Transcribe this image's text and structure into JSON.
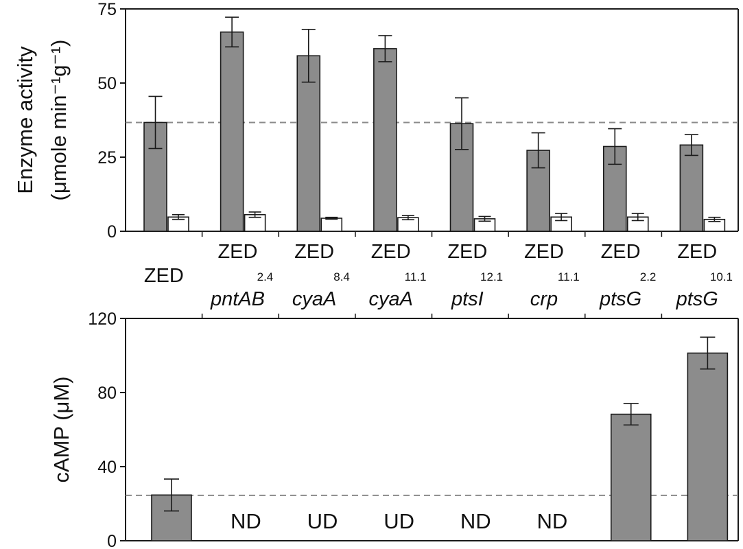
{
  "colors": {
    "gray_bar": "#8c8c8c",
    "white_bar": "#ffffff",
    "axis": "#1a1a1a",
    "reference_line": "#8a8a8a"
  },
  "categories": [
    {
      "line1": "ZED",
      "sup": "",
      "line2": ""
    },
    {
      "line1": "ZED",
      "sup": "2.4",
      "line2": "pntAB"
    },
    {
      "line1": "ZED",
      "sup": "8.4",
      "line2": "cyaA"
    },
    {
      "line1": "ZED",
      "sup": "11.1",
      "line2": "cyaA"
    },
    {
      "line1": "ZED",
      "sup": "12.1",
      "line2": "ptsI"
    },
    {
      "line1": "ZED",
      "sup": "11.1",
      "line2": "crp"
    },
    {
      "line1": "ZED",
      "sup": "2.2",
      "line2": "ptsG"
    },
    {
      "line1": "ZED",
      "sup": "10.1",
      "line2": "ptsG"
    }
  ],
  "chart_data": [
    {
      "type": "bar",
      "ylabel_line1": "Enzyme activity",
      "ylabel_line2": "(μmole min⁻¹g⁻¹)",
      "ylim": [
        0,
        75
      ],
      "yticks": [
        "0",
        "25",
        "50",
        "75"
      ],
      "reference_line": 36.7,
      "series": [
        {
          "values": [
            36.7,
            67.2,
            59.2,
            61.6,
            36.3,
            27.3,
            28.6,
            29.1
          ],
          "errors": [
            8.8,
            5.0,
            8.9,
            4.4,
            8.7,
            5.9,
            6.0,
            3.5
          ]
        },
        {
          "values": [
            4.8,
            5.6,
            4.4,
            4.6,
            4.2,
            4.8,
            4.8,
            4.0
          ],
          "errors": [
            0.8,
            0.9,
            0.3,
            0.7,
            0.8,
            1.2,
            1.2,
            0.7
          ]
        }
      ]
    },
    {
      "type": "bar",
      "ylabel": "cAMP (μM)",
      "ylim": [
        0,
        120
      ],
      "yticks": [
        "0",
        "40",
        "80",
        "120"
      ],
      "reference_line": 24.5,
      "values": [
        24.7,
        null,
        null,
        null,
        null,
        null,
        68.3,
        101.3
      ],
      "errors": [
        8.6,
        null,
        null,
        null,
        null,
        null,
        5.8,
        8.6
      ],
      "labels": [
        "",
        "ND",
        "UD",
        "UD",
        "ND",
        "ND",
        "",
        ""
      ]
    }
  ]
}
